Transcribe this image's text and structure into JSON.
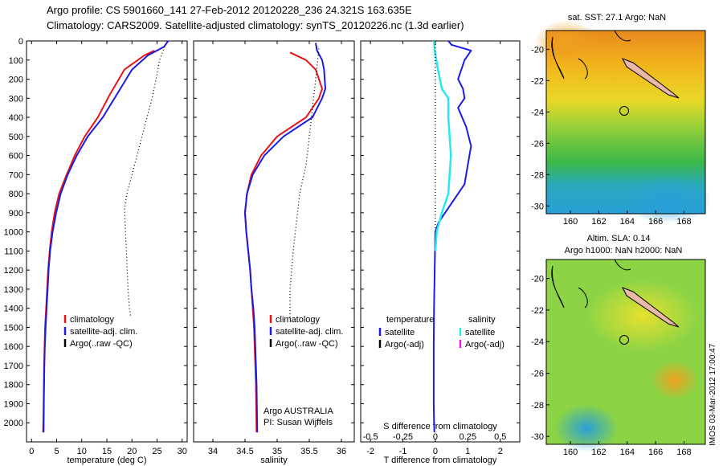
{
  "header": {
    "line1": "Argo profile: CS 5901660_141 27-Feb-2012 20120228_236 24.321S 163.635E",
    "line2": "Climatology: CARS2009. Satellite-adjusted climatology: synTS_20120226.nc (1.3d earlier)"
  },
  "depth_ticks": [
    "0",
    "100",
    "200",
    "300",
    "400",
    "500",
    "600",
    "700",
    "800",
    "900",
    "1000",
    "1100",
    "1200",
    "1300",
    "1400",
    "1500",
    "1600",
    "1700",
    "1800",
    "1900",
    "2000"
  ],
  "colors": {
    "climatology": "#e8141b",
    "satellite": "#1c1ce0",
    "argo": "#000000",
    "salinity_sat": "#26e8f0",
    "salinity_argo": "#e020e0"
  },
  "chart_data": [
    {
      "type": "line",
      "xlabel": "temperature (deg C)",
      "ylabel": "",
      "xlim": [
        -1,
        31
      ],
      "ylim": [
        2100,
        0
      ],
      "xticks": [
        "0",
        "5",
        "10",
        "15",
        "20",
        "25",
        "30"
      ],
      "legend": [
        "climatology",
        "satellite-adj. clim.",
        "Argo(..raw -QC)"
      ],
      "series": [
        {
          "name": "climatology",
          "x": [
            24.5,
            22.5,
            18.5,
            15.6,
            13.2,
            10.6,
            8.6,
            7.0,
            5.5,
            4.6,
            4.0,
            3.6,
            3.3,
            3.1,
            2.9,
            2.7,
            2.6,
            2.5,
            2.45,
            2.4,
            2.35,
            2.3
          ],
          "y": [
            50,
            75,
            150,
            280,
            400,
            500,
            600,
            700,
            800,
            900,
            1000,
            1100,
            1200,
            1300,
            1400,
            1500,
            1600,
            1700,
            1800,
            1900,
            2000,
            2050
          ]
        },
        {
          "name": "satellite-adj. clim.",
          "x": [
            27.2,
            26.4,
            25.0,
            23.2,
            20.0,
            17.0,
            14.2,
            11.2,
            9.0,
            7.2,
            5.8,
            4.9,
            4.2,
            3.7,
            3.4,
            3.2,
            3.0,
            2.8,
            2.65,
            2.55,
            2.5,
            2.45,
            2.4
          ],
          "y": [
            0,
            30,
            50,
            75,
            150,
            280,
            400,
            500,
            600,
            700,
            800,
            900,
            1000,
            1100,
            1200,
            1300,
            1400,
            1500,
            1600,
            1700,
            1800,
            1900,
            2050
          ]
        },
        {
          "name": "Argo(..raw -QC)",
          "x": [
            26.5,
            25.5,
            24.8,
            24.0,
            23.0,
            22.0,
            21.0,
            20.0,
            19.0,
            18.5,
            18.9,
            19.2,
            19.5,
            19.8
          ],
          "y": [
            30,
            100,
            200,
            300,
            400,
            500,
            600,
            700,
            800,
            880,
            1100,
            1300,
            1400,
            1450
          ]
        }
      ]
    },
    {
      "type": "line",
      "xlabel": "salinity",
      "ylabel": "",
      "xlim": [
        33.7,
        36.2
      ],
      "ylim": [
        2100,
        0
      ],
      "xticks": [
        "34",
        "34.5",
        "35",
        "35.5",
        "36"
      ],
      "legend": [
        "climatology",
        "satellite-adj. clim.",
        "Argo(..raw -QC)"
      ],
      "annotations": [
        "Argo AUSTRALIA",
        "PI: Susan Wijffels"
      ],
      "series": [
        {
          "name": "climatology",
          "x": [
            35.2,
            35.45,
            35.6,
            35.7,
            35.65,
            35.45,
            35.0,
            34.75,
            34.6,
            34.53,
            34.5,
            34.52,
            34.55,
            34.58,
            34.6,
            34.62,
            34.64,
            34.65,
            34.66,
            34.67,
            34.68
          ],
          "y": [
            60,
            100,
            150,
            250,
            300,
            400,
            500,
            600,
            700,
            800,
            900,
            1000,
            1100,
            1200,
            1300,
            1400,
            1500,
            1600,
            1700,
            1800,
            2050
          ]
        },
        {
          "name": "satellite-adj. clim.",
          "x": [
            35.6,
            35.62,
            35.7,
            35.73,
            35.75,
            35.7,
            35.55,
            35.1,
            34.8,
            34.62,
            34.53,
            34.5,
            34.52,
            34.55,
            34.58,
            34.6,
            34.63,
            34.65,
            34.66,
            34.67,
            34.68,
            34.69
          ],
          "y": [
            10,
            50,
            100,
            150,
            250,
            300,
            400,
            500,
            600,
            700,
            800,
            900,
            1000,
            1100,
            1200,
            1300,
            1400,
            1500,
            1600,
            1700,
            1800,
            2050
          ]
        },
        {
          "name": "Argo(..raw -QC)",
          "x": [
            35.65,
            35.6,
            35.55,
            35.5,
            35.45,
            35.35,
            35.3,
            35.25,
            35.2,
            35.2
          ],
          "y": [
            40,
            200,
            350,
            500,
            650,
            800,
            950,
            1100,
            1300,
            1450
          ]
        }
      ]
    },
    {
      "type": "line",
      "xlabel": "T difference from climatology",
      "x2label": "S difference from climatology",
      "xlim": [
        -2.3,
        2.6
      ],
      "x2lim": [
        -0.575,
        0.65
      ],
      "ylim": [
        2100,
        0
      ],
      "xticks": [
        "-2",
        "-1",
        "0",
        "1",
        "2"
      ],
      "x2ticks": [
        "-0.5",
        "-0.25",
        "0",
        "0.25",
        "0.5"
      ],
      "legend": {
        "temperature": [
          "temperature",
          "satellite",
          "Argo(-adj)"
        ],
        "salinity": [
          "salinity",
          "satellite",
          "Argo(-adj)"
        ]
      },
      "series": [
        {
          "name": "temperature satellite",
          "x": [
            0.4,
            0.5,
            1.1,
            0.9,
            0.8,
            0.7,
            0.85,
            0.9,
            0.7,
            0.95,
            1.1,
            1.0,
            0.9,
            0.5,
            0.1,
            0.0,
            -0.02,
            -0.04,
            -0.05,
            -0.05,
            -0.05,
            -0.04,
            -0.03
          ],
          "y": [
            0,
            20,
            50,
            100,
            150,
            200,
            250,
            300,
            350,
            450,
            550,
            650,
            750,
            850,
            950,
            1000,
            1200,
            1400,
            1600,
            1800,
            1900,
            2000,
            2050
          ]
        },
        {
          "name": "salinity satellite",
          "x": [
            -0.01,
            -0.005,
            0.02,
            0.05,
            0.1,
            0.1,
            0.11,
            0.12,
            0.11,
            0.1,
            0.05,
            0.01,
            0.0
          ],
          "y": [
            0,
            50,
            150,
            250,
            300,
            400,
            500,
            600,
            700,
            800,
            900,
            1000,
            1100
          ]
        },
        {
          "name": "Argo(-adj)",
          "x": [
            0,
            0
          ],
          "y": [
            0,
            1000
          ]
        }
      ]
    }
  ],
  "maps": {
    "sst": {
      "title": "sat. SST: 27.1  Argo: NaN",
      "xticks": [
        "160",
        "162",
        "164",
        "166",
        "168"
      ],
      "yticks": [
        "-20",
        "-22",
        "-24",
        "-26",
        "-28",
        "-30"
      ]
    },
    "sla": {
      "title1": "Altim. SLA: 0.14",
      "title2": "Argo h1000: NaN h2000: NaN",
      "xticks": [
        "160",
        "162",
        "164",
        "166",
        "168"
      ],
      "yticks": [
        "-20",
        "-22",
        "-24",
        "-26",
        "-28",
        "-30"
      ]
    }
  },
  "footer": {
    "stamp": "IMOS 03-Mar-2012 17:00:47"
  }
}
